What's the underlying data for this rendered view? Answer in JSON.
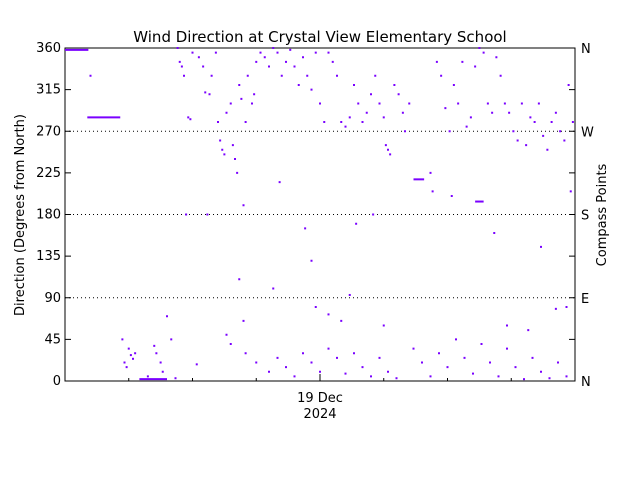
{
  "chart_data": {
    "type": "scatter",
    "title": "Wind Direction at Crystal View Elementary School",
    "ylabel": "Direction (Degrees from North)",
    "y2label": "Compass Points",
    "xlabel": "",
    "x_tick_label": [
      "19 Dec",
      "2024"
    ],
    "xlim": [
      0,
      24
    ],
    "ylim": [
      0,
      360
    ],
    "y_ticks": [
      0,
      45,
      90,
      135,
      180,
      225,
      270,
      315,
      360
    ],
    "compass_ticks": [
      {
        "value": 0,
        "label": "N"
      },
      {
        "value": 90,
        "label": "E"
      },
      {
        "value": 180,
        "label": "S"
      },
      {
        "value": 270,
        "label": "W"
      },
      {
        "value": 360,
        "label": "N"
      }
    ],
    "grid": "dotted lines at 90, 180, 270",
    "point_color": "#7a00ff",
    "segments": [
      {
        "x": [
          0.0,
          1.1
        ],
        "y": 358
      },
      {
        "x": [
          1.05,
          2.6
        ],
        "y": 285
      },
      {
        "x": [
          3.5,
          4.8
        ],
        "y": 2
      },
      {
        "x": [
          16.4,
          16.9
        ],
        "y": 218
      },
      {
        "x": [
          19.3,
          19.7
        ],
        "y": 194
      }
    ],
    "points": [
      [
        1.2,
        330
      ],
      [
        2.7,
        45
      ],
      [
        2.8,
        20
      ],
      [
        2.9,
        15
      ],
      [
        3.0,
        35
      ],
      [
        3.1,
        28
      ],
      [
        3.2,
        24
      ],
      [
        3.3,
        30
      ],
      [
        3.9,
        5
      ],
      [
        4.2,
        38
      ],
      [
        4.3,
        30
      ],
      [
        4.5,
        20
      ],
      [
        4.6,
        10
      ],
      [
        4.8,
        70
      ],
      [
        5.0,
        45
      ],
      [
        5.2,
        3
      ],
      [
        5.3,
        360
      ],
      [
        5.4,
        345
      ],
      [
        5.5,
        340
      ],
      [
        5.6,
        330
      ],
      [
        5.8,
        285
      ],
      [
        5.9,
        283
      ],
      [
        6.0,
        355
      ],
      [
        6.3,
        350
      ],
      [
        6.5,
        340
      ],
      [
        6.6,
        312
      ],
      [
        6.8,
        310
      ],
      [
        6.9,
        330
      ],
      [
        7.1,
        355
      ],
      [
        7.2,
        280
      ],
      [
        7.3,
        260
      ],
      [
        7.4,
        250
      ],
      [
        7.5,
        245
      ],
      [
        7.6,
        290
      ],
      [
        7.8,
        300
      ],
      [
        7.9,
        255
      ],
      [
        8.0,
        240
      ],
      [
        8.1,
        225
      ],
      [
        8.2,
        320
      ],
      [
        8.3,
        305
      ],
      [
        8.5,
        280
      ],
      [
        8.6,
        330
      ],
      [
        8.8,
        300
      ],
      [
        8.9,
        310
      ],
      [
        9.0,
        345
      ],
      [
        9.2,
        355
      ],
      [
        9.4,
        350
      ],
      [
        9.6,
        340
      ],
      [
        9.8,
        360
      ],
      [
        10.0,
        355
      ],
      [
        10.2,
        330
      ],
      [
        10.4,
        345
      ],
      [
        10.6,
        358
      ],
      [
        10.8,
        340
      ],
      [
        11.0,
        320
      ],
      [
        11.2,
        350
      ],
      [
        11.4,
        330
      ],
      [
        11.6,
        315
      ],
      [
        11.8,
        355
      ],
      [
        12.0,
        300
      ],
      [
        12.2,
        280
      ],
      [
        12.4,
        355
      ],
      [
        12.6,
        345
      ],
      [
        12.8,
        330
      ],
      [
        13.0,
        280
      ],
      [
        13.2,
        275
      ],
      [
        13.4,
        285
      ],
      [
        13.6,
        320
      ],
      [
        13.8,
        300
      ],
      [
        14.0,
        280
      ],
      [
        14.2,
        290
      ],
      [
        14.4,
        310
      ],
      [
        14.6,
        330
      ],
      [
        14.8,
        300
      ],
      [
        15.0,
        285
      ],
      [
        15.1,
        255
      ],
      [
        15.2,
        250
      ],
      [
        15.3,
        245
      ],
      [
        15.5,
        320
      ],
      [
        15.7,
        310
      ],
      [
        15.9,
        290
      ],
      [
        16.0,
        270
      ],
      [
        16.2,
        300
      ],
      [
        17.2,
        225
      ],
      [
        17.3,
        205
      ],
      [
        17.5,
        345
      ],
      [
        17.7,
        330
      ],
      [
        17.9,
        295
      ],
      [
        18.1,
        270
      ],
      [
        18.3,
        320
      ],
      [
        18.5,
        300
      ],
      [
        18.7,
        345
      ],
      [
        18.9,
        275
      ],
      [
        19.1,
        285
      ],
      [
        19.3,
        340
      ],
      [
        19.5,
        360
      ],
      [
        19.7,
        355
      ],
      [
        19.9,
        300
      ],
      [
        20.1,
        290
      ],
      [
        20.3,
        350
      ],
      [
        20.5,
        330
      ],
      [
        20.7,
        300
      ],
      [
        20.9,
        290
      ],
      [
        21.1,
        270
      ],
      [
        21.3,
        260
      ],
      [
        21.5,
        300
      ],
      [
        21.7,
        255
      ],
      [
        21.9,
        285
      ],
      [
        22.1,
        280
      ],
      [
        22.3,
        300
      ],
      [
        22.5,
        265
      ],
      [
        22.7,
        250
      ],
      [
        22.9,
        280
      ],
      [
        23.1,
        290
      ],
      [
        23.3,
        270
      ],
      [
        23.5,
        260
      ],
      [
        23.7,
        320
      ],
      [
        23.9,
        280
      ],
      [
        5.7,
        180
      ],
      [
        6.7,
        180
      ],
      [
        8.4,
        190
      ],
      [
        10.1,
        215
      ],
      [
        11.3,
        165
      ],
      [
        11.6,
        130
      ],
      [
        13.7,
        170
      ],
      [
        14.5,
        180
      ],
      [
        18.2,
        200
      ],
      [
        20.2,
        160
      ],
      [
        22.4,
        145
      ],
      [
        23.8,
        205
      ],
      [
        8.2,
        110
      ],
      [
        9.8,
        100
      ],
      [
        13.4,
        93
      ],
      [
        11.8,
        80
      ],
      [
        12.4,
        72
      ],
      [
        13.0,
        65
      ],
      [
        15.0,
        60
      ],
      [
        7.6,
        50
      ],
      [
        8.4,
        65
      ],
      [
        20.8,
        60
      ],
      [
        21.8,
        55
      ],
      [
        23.1,
        78
      ],
      [
        23.6,
        80
      ],
      [
        6.2,
        18
      ],
      [
        7.8,
        40
      ],
      [
        8.5,
        30
      ],
      [
        9.0,
        20
      ],
      [
        9.6,
        10
      ],
      [
        10.0,
        25
      ],
      [
        10.4,
        15
      ],
      [
        10.8,
        5
      ],
      [
        11.2,
        30
      ],
      [
        11.6,
        20
      ],
      [
        12.0,
        10
      ],
      [
        12.4,
        35
      ],
      [
        12.8,
        25
      ],
      [
        13.2,
        8
      ],
      [
        13.6,
        30
      ],
      [
        14.0,
        15
      ],
      [
        14.4,
        5
      ],
      [
        14.8,
        25
      ],
      [
        15.2,
        10
      ],
      [
        15.6,
        3
      ],
      [
        16.4,
        35
      ],
      [
        16.8,
        20
      ],
      [
        17.2,
        5
      ],
      [
        17.6,
        30
      ],
      [
        18.0,
        15
      ],
      [
        18.4,
        45
      ],
      [
        18.8,
        25
      ],
      [
        19.2,
        8
      ],
      [
        19.6,
        40
      ],
      [
        20.0,
        20
      ],
      [
        20.4,
        5
      ],
      [
        20.8,
        35
      ],
      [
        21.2,
        15
      ],
      [
        21.6,
        2
      ],
      [
        22.0,
        25
      ],
      [
        22.4,
        10
      ],
      [
        22.8,
        3
      ],
      [
        23.2,
        20
      ],
      [
        23.6,
        5
      ]
    ]
  }
}
